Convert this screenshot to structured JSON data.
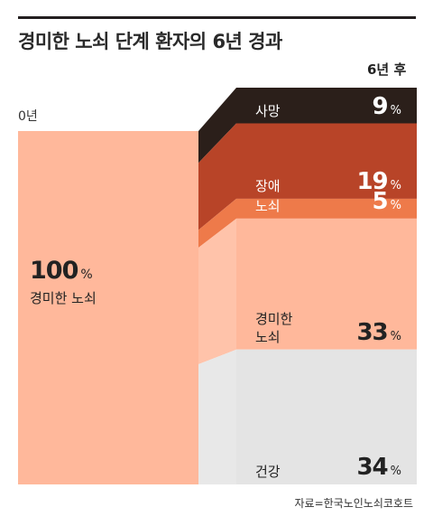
{
  "title": "경미한 노쇠 단계 환자의 6년 경과",
  "label_before": "0년",
  "label_after": "6년 후",
  "source": "자료=한국노인노쇠코호트",
  "chart_data": {
    "type": "sankey",
    "title": "경미한 노쇠 단계 환자의 6년 경과",
    "source": {
      "name": "경미한 노쇠",
      "value": 100,
      "unit": "%"
    },
    "categories": [
      {
        "name": "사망",
        "value": 9,
        "unit": "%",
        "color": "#2b1f1a",
        "text_color": "#ffffff"
      },
      {
        "name": "장애",
        "value": 19,
        "unit": "%",
        "color": "#b84428",
        "text_color": "#ffffff"
      },
      {
        "name": "노쇠",
        "value": 5,
        "unit": "%",
        "color": "#ee7a4a",
        "text_color": "#ffffff"
      },
      {
        "name": "경미한\n노쇠",
        "value": 33,
        "unit": "%",
        "color": "#ffb89b",
        "text_color": "#222222"
      },
      {
        "name": "건강",
        "value": 34,
        "unit": "%",
        "color": "#e4e4e4",
        "text_color": "#222222"
      }
    ],
    "source_color": "#ffb89b"
  }
}
